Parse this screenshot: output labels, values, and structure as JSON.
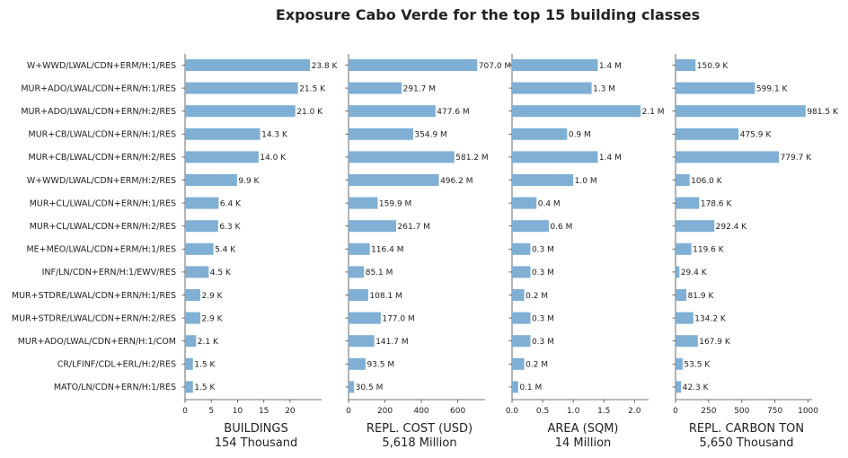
{
  "title": "Exposure Cabo Verde for the top 15 building classes",
  "chart_data": {
    "type": "bar",
    "orientation": "horizontal",
    "color": "#7fafd4",
    "categories": [
      "W+WWD/LWAL/CDN+ERM/H:1/RES",
      "MUR+ADO/LWAL/CDN+ERN/H:1/RES",
      "MUR+ADO/LWAL/CDN+ERN/H:2/RES",
      "MUR+CB/LWAL/CDN+ERN/H:1/RES",
      "MUR+CB/LWAL/CDN+ERN/H:2/RES",
      "W+WWD/LWAL/CDN+ERM/H:2/RES",
      "MUR+CL/LWAL/CDN+ERN/H:1/RES",
      "MUR+CL/LWAL/CDN+ERN/H:2/RES",
      "ME+MEO/LWAL/CDN+ERM/H:1/RES",
      "INF/LN/CDN+ERN/H:1/EWV/RES",
      "MUR+STDRE/LWAL/CDN+ERN/H:1/RES",
      "MUR+STDRE/LWAL/CDN+ERN/H:2/RES",
      "MUR+ADO/LWAL/CDN+ERN/H:1/COM",
      "CR/LFINF/CDL+ERL/H:2/RES",
      "MATO/LN/CDN+ERN/H:1/RES"
    ],
    "panels": [
      {
        "xlabel": "BUILDINGS",
        "total": "154 Thousand",
        "values": [
          23.8,
          21.5,
          21.0,
          14.3,
          14.0,
          9.9,
          6.4,
          6.3,
          5.4,
          4.5,
          2.9,
          2.9,
          2.1,
          1.5,
          1.5
        ],
        "labels": [
          "23.8 K",
          "21.5 K",
          "21.0 K",
          "14.3 K",
          "14.0 K",
          "9.9 K",
          "6.4 K",
          "6.3 K",
          "5.4 K",
          "4.5 K",
          "2.9 K",
          "2.9 K",
          "2.1 K",
          "1.5 K",
          "1.5 K"
        ],
        "xlim": [
          0,
          26
        ],
        "ticks": [
          0,
          5,
          10,
          15,
          20
        ],
        "tick_labels": [
          "0",
          "5",
          "10",
          "15",
          "20"
        ]
      },
      {
        "xlabel": "REPL. COST (USD)",
        "total": "5,618 Million",
        "values": [
          707.0,
          291.7,
          477.6,
          354.9,
          581.2,
          496.2,
          159.9,
          261.7,
          116.4,
          85.1,
          108.1,
          177.0,
          141.7,
          93.5,
          30.5
        ],
        "labels": [
          "707.0 M",
          "291.7 M",
          "477.6 M",
          "354.9 M",
          "581.2 M",
          "496.2 M",
          "159.9 M",
          "261.7 M",
          "116.4 M",
          "85.1 M",
          "108.1 M",
          "177.0 M",
          "141.7 M",
          "93.5 M",
          "30.5 M"
        ],
        "xlim": [
          0,
          750
        ],
        "ticks": [
          0,
          200,
          400,
          600
        ],
        "tick_labels": [
          "0",
          "200",
          "400",
          "600"
        ]
      },
      {
        "xlabel": "AREA (SQM)",
        "total": "14 Million",
        "values": [
          1.4,
          1.3,
          2.1,
          0.9,
          1.4,
          1.0,
          0.4,
          0.6,
          0.3,
          0.3,
          0.2,
          0.3,
          0.3,
          0.2,
          0.1
        ],
        "labels": [
          "1.4 M",
          "1.3 M",
          "2.1 M",
          "0.9 M",
          "1.4 M",
          "1.0 M",
          "0.4 M",
          "0.6 M",
          "0.3 M",
          "0.3 M",
          "0.2 M",
          "0.3 M",
          "0.3 M",
          "0.2 M",
          "0.1 M"
        ],
        "xlim": [
          0,
          2.23
        ],
        "ticks": [
          0,
          0.5,
          1.0,
          1.5,
          2.0
        ],
        "tick_labels": [
          "0.0",
          "0.5",
          "1.0",
          "1.5",
          "2.0"
        ]
      },
      {
        "xlabel": "REPL. CARBON TON",
        "total": "5,650 Thousand",
        "values": [
          150.9,
          599.1,
          981.5,
          475.9,
          779.7,
          106.0,
          178.6,
          292.4,
          119.6,
          29.4,
          81.9,
          134.2,
          167.9,
          53.5,
          42.3
        ],
        "labels": [
          "150.9 K",
          "599.1 K",
          "981.5 K",
          "475.9 K",
          "779.7 K",
          "106.0 K",
          "178.6 K",
          "292.4 K",
          "119.6 K",
          "29.4 K",
          "81.9 K",
          "134.2 K",
          "167.9 K",
          "53.5 K",
          "42.3 K"
        ],
        "xlim": [
          0,
          1030
        ],
        "ticks": [
          0,
          250,
          500,
          750,
          1000
        ],
        "tick_labels": [
          "0",
          "250",
          "500",
          "750",
          "1000"
        ]
      }
    ]
  }
}
